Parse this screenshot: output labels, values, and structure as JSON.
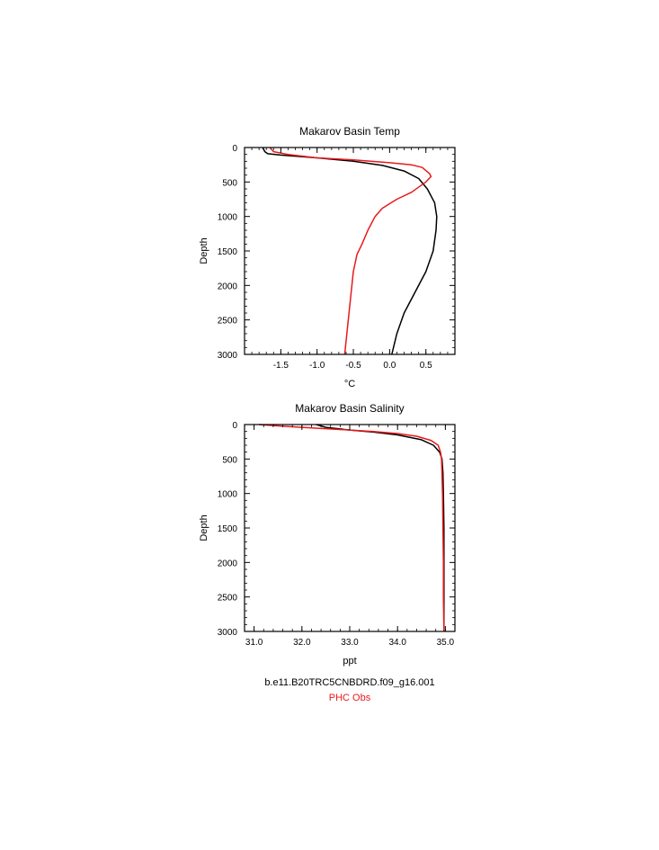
{
  "charts": [
    {
      "title": "Makarov Basin Temp",
      "xlabel": "°C",
      "ylabel": "Depth",
      "xticks": [
        "-1.5",
        "-1.0",
        "-0.5",
        "0.0",
        "0.5"
      ],
      "yticks": [
        "0",
        "500",
        "1000",
        "1500",
        "2000",
        "2500",
        "3000"
      ]
    },
    {
      "title": "Makarov Basin Salinity",
      "xlabel": "ppt",
      "ylabel": "Depth",
      "xticks": [
        "31.0",
        "32.0",
        "33.0",
        "34.0",
        "35.0"
      ],
      "yticks": [
        "0",
        "500",
        "1000",
        "1500",
        "2000",
        "2500",
        "3000"
      ]
    }
  ],
  "legend": {
    "model_label": "b.e11.B20TRC5CNBDRD.f09_g16.001",
    "obs_label": "PHC Obs"
  },
  "colors": {
    "model": "#000000",
    "obs": "#e8191a"
  },
  "chart_data": [
    {
      "type": "line",
      "title": "Makarov Basin Temp",
      "xlabel": "°C",
      "ylabel": "Depth",
      "xlim": [
        -2.0,
        0.9
      ],
      "ylim": [
        0,
        3000
      ],
      "y_inverted": true,
      "series": [
        {
          "name": "b.e11.B20TRC5CNBDRD.f09_g16.001",
          "color": "#000000",
          "points": [
            [
              -1.75,
              0
            ],
            [
              -1.72,
              60
            ],
            [
              -1.68,
              90
            ],
            [
              -1.5,
              110
            ],
            [
              -1.0,
              150
            ],
            [
              -0.5,
              200
            ],
            [
              -0.1,
              260
            ],
            [
              0.2,
              340
            ],
            [
              0.4,
              450
            ],
            [
              0.52,
              600
            ],
            [
              0.62,
              800
            ],
            [
              0.65,
              1000
            ],
            [
              0.64,
              1200
            ],
            [
              0.6,
              1500
            ],
            [
              0.5,
              1800
            ],
            [
              0.35,
              2100
            ],
            [
              0.2,
              2400
            ],
            [
              0.1,
              2700
            ],
            [
              0.03,
              3000
            ]
          ]
        },
        {
          "name": "PHC Obs",
          "color": "#e8191a",
          "points": [
            [
              -1.65,
              0
            ],
            [
              -1.6,
              60
            ],
            [
              -1.4,
              100
            ],
            [
              -1.0,
              150
            ],
            [
              -0.5,
              180
            ],
            [
              0.0,
              220
            ],
            [
              0.3,
              250
            ],
            [
              0.45,
              290
            ],
            [
              0.55,
              380
            ],
            [
              0.57,
              420
            ],
            [
              0.5,
              500
            ],
            [
              0.3,
              650
            ],
            [
              0.1,
              750
            ],
            [
              -0.1,
              880
            ],
            [
              -0.2,
              1000
            ],
            [
              -0.3,
              1200
            ],
            [
              -0.38,
              1400
            ],
            [
              -0.45,
              1550
            ],
            [
              -0.5,
              1800
            ],
            [
              -0.52,
              2000
            ],
            [
              -0.55,
              2300
            ],
            [
              -0.58,
              2600
            ],
            [
              -0.6,
              2800
            ],
            [
              -0.62,
              3000
            ]
          ]
        }
      ]
    },
    {
      "type": "line",
      "title": "Makarov Basin Salinity",
      "xlabel": "ppt",
      "ylabel": "Depth",
      "xlim": [
        30.8,
        35.2
      ],
      "ylim": [
        0,
        3000
      ],
      "y_inverted": true,
      "series": [
        {
          "name": "b.e11.B20TRC5CNBDRD.f09_g16.001",
          "color": "#000000",
          "points": [
            [
              32.3,
              0
            ],
            [
              32.5,
              40
            ],
            [
              33.0,
              80
            ],
            [
              33.5,
              110
            ],
            [
              34.0,
              150
            ],
            [
              34.5,
              220
            ],
            [
              34.75,
              300
            ],
            [
              34.88,
              400
            ],
            [
              34.93,
              500
            ],
            [
              34.95,
              700
            ],
            [
              34.96,
              1000
            ],
            [
              34.97,
              1500
            ],
            [
              34.97,
              2000
            ],
            [
              34.97,
              2500
            ],
            [
              34.97,
              3000
            ]
          ]
        },
        {
          "name": "PHC Obs",
          "color": "#e8191a",
          "points": [
            [
              31.1,
              0
            ],
            [
              31.5,
              20
            ],
            [
              32.0,
              40
            ],
            [
              32.5,
              60
            ],
            [
              33.0,
              80
            ],
            [
              33.5,
              100
            ],
            [
              34.0,
              130
            ],
            [
              34.4,
              170
            ],
            [
              34.7,
              230
            ],
            [
              34.85,
              300
            ],
            [
              34.9,
              400
            ],
            [
              34.92,
              500
            ],
            [
              34.93,
              700
            ],
            [
              34.94,
              1000
            ],
            [
              34.95,
              1500
            ],
            [
              34.96,
              2000
            ],
            [
              34.96,
              2500
            ],
            [
              34.97,
              3000
            ]
          ]
        }
      ]
    }
  ]
}
